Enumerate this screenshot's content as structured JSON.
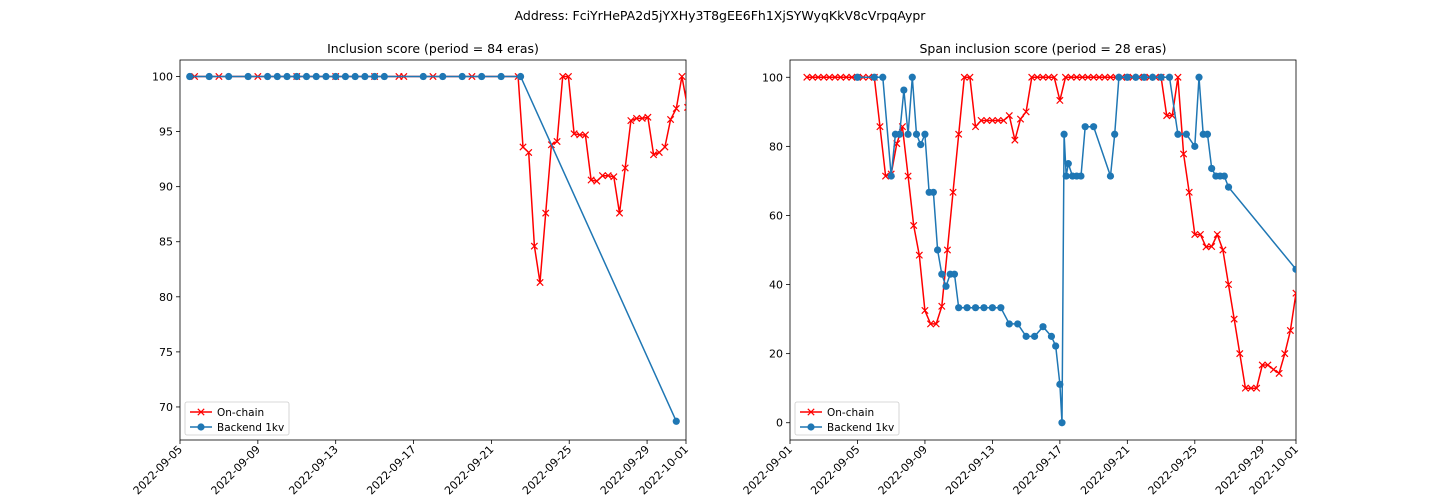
{
  "figure": {
    "suptitle": "Address: FciYrHePA2d5jYXHy3T8gEE6Fh1XjSYWyqKkV8cVrpqAypr"
  },
  "chart_data": [
    {
      "type": "line",
      "title": "Inclusion score (period = 84 eras)",
      "xlabel": "",
      "ylabel": "",
      "x_axis": "date",
      "xlim": [
        "2022-09-05",
        "2022-10-01"
      ],
      "ylim": [
        67,
        101.5
      ],
      "x_ticks": [
        "2022-09-05",
        "2022-09-09",
        "2022-09-13",
        "2022-09-17",
        "2022-09-21",
        "2022-09-25",
        "2022-09-29",
        "2022-10-01"
      ],
      "y_ticks": [
        70,
        75,
        80,
        85,
        90,
        95,
        100
      ],
      "legend": {
        "position": "lower-left"
      },
      "series": [
        {
          "name": "On-chain",
          "color": "#ff0000",
          "marker": "x",
          "points": [
            [
              "2022-09-05T18:00",
              100
            ],
            [
              "2022-09-07T00:00",
              100
            ],
            [
              "2022-09-09T00:00",
              100
            ],
            [
              "2022-09-11T00:00",
              100
            ],
            [
              "2022-09-13T00:00",
              100
            ],
            [
              "2022-09-15T00:00",
              100
            ],
            [
              "2022-09-16T06:00",
              100
            ],
            [
              "2022-09-16T12:00",
              100
            ],
            [
              "2022-09-18T00:00",
              100
            ],
            [
              "2022-09-20T00:00",
              100
            ],
            [
              "2022-09-22T09:00",
              100
            ],
            [
              "2022-09-22T15:00",
              93.6
            ],
            [
              "2022-09-22T22:00",
              93.1
            ],
            [
              "2022-09-23T05:00",
              84.6
            ],
            [
              "2022-09-23T12:00",
              81.3
            ],
            [
              "2022-09-23T19:00",
              87.6
            ],
            [
              "2022-09-24T02:00",
              93.8
            ],
            [
              "2022-09-24T09:00",
              94.1
            ],
            [
              "2022-09-24T16:00",
              100
            ],
            [
              "2022-09-24T23:00",
              100
            ],
            [
              "2022-09-25T06:00",
              94.8
            ],
            [
              "2022-09-25T13:00",
              94.7
            ],
            [
              "2022-09-25T20:00",
              94.7
            ],
            [
              "2022-09-26T03:00",
              90.6
            ],
            [
              "2022-09-26T10:00",
              90.5
            ],
            [
              "2022-09-26T17:00",
              91.0
            ],
            [
              "2022-09-27T00:00",
              91.0
            ],
            [
              "2022-09-27T07:00",
              90.9
            ],
            [
              "2022-09-27T14:00",
              87.6
            ],
            [
              "2022-09-27T21:00",
              91.7
            ],
            [
              "2022-09-28T04:00",
              96.0
            ],
            [
              "2022-09-28T11:00",
              96.2
            ],
            [
              "2022-09-28T18:00",
              96.2
            ],
            [
              "2022-09-29T01:00",
              96.3
            ],
            [
              "2022-09-29T08:00",
              92.9
            ],
            [
              "2022-09-29T15:00",
              93.1
            ],
            [
              "2022-09-29T22:00",
              93.6
            ],
            [
              "2022-09-30T05:00",
              96.1
            ],
            [
              "2022-09-30T12:00",
              97.1
            ],
            [
              "2022-09-30T19:00",
              100
            ],
            [
              "2022-10-01T02:00",
              97.2
            ],
            [
              "2022-10-01T09:00",
              97.2
            ],
            [
              "2022-10-01T16:00",
              97.2
            ]
          ]
        },
        {
          "name": "Backend 1kv",
          "color": "#1f77b4",
          "marker": "o",
          "points": [
            [
              "2022-09-05T12:00",
              100
            ],
            [
              "2022-09-06T12:00",
              100
            ],
            [
              "2022-09-07T12:00",
              100
            ],
            [
              "2022-09-08T12:00",
              100
            ],
            [
              "2022-09-09T12:00",
              100
            ],
            [
              "2022-09-10T00:00",
              100
            ],
            [
              "2022-09-10T12:00",
              100
            ],
            [
              "2022-09-11T00:00",
              100
            ],
            [
              "2022-09-11T12:00",
              100
            ],
            [
              "2022-09-12T00:00",
              100
            ],
            [
              "2022-09-12T12:00",
              100
            ],
            [
              "2022-09-13T00:00",
              100
            ],
            [
              "2022-09-13T12:00",
              100
            ],
            [
              "2022-09-14T00:00",
              100
            ],
            [
              "2022-09-14T12:00",
              100
            ],
            [
              "2022-09-15T00:00",
              100
            ],
            [
              "2022-09-15T12:00",
              100
            ],
            [
              "2022-09-17T12:00",
              100
            ],
            [
              "2022-09-18T12:00",
              100
            ],
            [
              "2022-09-19T12:00",
              100
            ],
            [
              "2022-09-20T12:00",
              100
            ],
            [
              "2022-09-21T12:00",
              100
            ],
            [
              "2022-09-22T12:00",
              100
            ],
            [
              "2022-09-30T12:00",
              68.7
            ]
          ]
        }
      ]
    },
    {
      "type": "line",
      "title": "Span inclusion score (period = 28 eras)",
      "xlabel": "",
      "ylabel": "",
      "x_axis": "date",
      "xlim": [
        "2022-09-01",
        "2022-10-01"
      ],
      "ylim": [
        -5,
        105
      ],
      "x_ticks": [
        "2022-09-01",
        "2022-09-05",
        "2022-09-09",
        "2022-09-13",
        "2022-09-17",
        "2022-09-21",
        "2022-09-25",
        "2022-09-29",
        "2022-10-01"
      ],
      "y_ticks": [
        0,
        20,
        40,
        60,
        80,
        100
      ],
      "legend": {
        "position": "lower-left"
      },
      "series": [
        {
          "name": "On-chain",
          "color": "#ff0000",
          "marker": "x",
          "points": [
            [
              "2022-09-02T00:00",
              100
            ],
            [
              "2022-09-02T08:00",
              100
            ],
            [
              "2022-09-02T16:00",
              100
            ],
            [
              "2022-09-03T00:00",
              100
            ],
            [
              "2022-09-03T08:00",
              100
            ],
            [
              "2022-09-03T16:00",
              100
            ],
            [
              "2022-09-04T00:00",
              100
            ],
            [
              "2022-09-04T08:00",
              100
            ],
            [
              "2022-09-04T16:00",
              100
            ],
            [
              "2022-09-05T00:00",
              100
            ],
            [
              "2022-09-05T08:00",
              100
            ],
            [
              "2022-09-05T16:00",
              100
            ],
            [
              "2022-09-06T00:00",
              100
            ],
            [
              "2022-09-06T08:00",
              85.7
            ],
            [
              "2022-09-06T16:00",
              71.4
            ],
            [
              "2022-09-07T00:00",
              72.0
            ],
            [
              "2022-09-07T08:00",
              80.8
            ],
            [
              "2022-09-07T16:00",
              85.7
            ],
            [
              "2022-09-08T00:00",
              71.4
            ],
            [
              "2022-09-08T08:00",
              57.1
            ],
            [
              "2022-09-08T16:00",
              48.5
            ],
            [
              "2022-09-09T00:00",
              32.5
            ],
            [
              "2022-09-09T08:00",
              28.6
            ],
            [
              "2022-09-09T16:00",
              28.6
            ],
            [
              "2022-09-10T00:00",
              33.7
            ],
            [
              "2022-09-10T08:00",
              50.0
            ],
            [
              "2022-09-10T16:00",
              66.7
            ],
            [
              "2022-09-11T00:00",
              83.5
            ],
            [
              "2022-09-11T08:00",
              100
            ],
            [
              "2022-09-11T16:00",
              100
            ],
            [
              "2022-09-12T00:00",
              85.7
            ],
            [
              "2022-09-12T08:00",
              87.5
            ],
            [
              "2022-09-12T16:00",
              87.5
            ],
            [
              "2022-09-13T00:00",
              87.5
            ],
            [
              "2022-09-13T08:00",
              87.5
            ],
            [
              "2022-09-13T16:00",
              87.5
            ],
            [
              "2022-09-14T00:00",
              88.9
            ],
            [
              "2022-09-14T08:00",
              81.8
            ],
            [
              "2022-09-14T16:00",
              87.9
            ],
            [
              "2022-09-15T00:00",
              90.0
            ],
            [
              "2022-09-15T08:00",
              100
            ],
            [
              "2022-09-15T16:00",
              100
            ],
            [
              "2022-09-16T00:00",
              100
            ],
            [
              "2022-09-16T08:00",
              100
            ],
            [
              "2022-09-16T16:00",
              100
            ],
            [
              "2022-09-17T00:00",
              93.3
            ],
            [
              "2022-09-17T08:00",
              100
            ],
            [
              "2022-09-17T16:00",
              100
            ],
            [
              "2022-09-18T00:00",
              100
            ],
            [
              "2022-09-18T08:00",
              100
            ],
            [
              "2022-09-18T16:00",
              100
            ],
            [
              "2022-09-19T00:00",
              100
            ],
            [
              "2022-09-19T08:00",
              100
            ],
            [
              "2022-09-19T16:00",
              100
            ],
            [
              "2022-09-20T00:00",
              100
            ],
            [
              "2022-09-20T08:00",
              100
            ],
            [
              "2022-09-20T16:00",
              100
            ],
            [
              "2022-09-21T00:00",
              100
            ],
            [
              "2022-09-21T08:00",
              100
            ],
            [
              "2022-09-21T16:00",
              100
            ],
            [
              "2022-09-22T00:00",
              100
            ],
            [
              "2022-09-22T08:00",
              100
            ],
            [
              "2022-09-22T16:00",
              100
            ],
            [
              "2022-09-23T00:00",
              100
            ],
            [
              "2022-09-23T08:00",
              88.9
            ],
            [
              "2022-09-23T16:00",
              88.9
            ],
            [
              "2022-09-24T00:00",
              100
            ],
            [
              "2022-09-24T08:00",
              77.8
            ],
            [
              "2022-09-24T16:00",
              66.7
            ],
            [
              "2022-09-25T00:00",
              54.5
            ],
            [
              "2022-09-25T08:00",
              54.5
            ],
            [
              "2022-09-25T16:00",
              50.9
            ],
            [
              "2022-09-26T00:00",
              51.0
            ],
            [
              "2022-09-26T08:00",
              54.5
            ],
            [
              "2022-09-26T16:00",
              50.0
            ],
            [
              "2022-09-27T00:00",
              40.0
            ],
            [
              "2022-09-27T08:00",
              30.0
            ],
            [
              "2022-09-27T16:00",
              20.0
            ],
            [
              "2022-09-28T00:00",
              10.0
            ],
            [
              "2022-09-28T08:00",
              10.0
            ],
            [
              "2022-09-28T16:00",
              10.0
            ],
            [
              "2022-09-29T00:00",
              16.7
            ],
            [
              "2022-09-29T08:00",
              16.7
            ],
            [
              "2022-09-29T16:00",
              15.4
            ],
            [
              "2022-09-30T00:00",
              14.3
            ],
            [
              "2022-09-30T08:00",
              20.0
            ],
            [
              "2022-09-30T16:00",
              26.7
            ],
            [
              "2022-10-01T00:00",
              37.5
            ]
          ]
        },
        {
          "name": "Backend 1kv",
          "color": "#1f77b4",
          "marker": "o",
          "points": [
            [
              "2022-09-05T00:00",
              100
            ],
            [
              "2022-09-06T00:00",
              100
            ],
            [
              "2022-09-06T12:00",
              100
            ],
            [
              "2022-09-07T00:00",
              71.4
            ],
            [
              "2022-09-07T06:00",
              83.5
            ],
            [
              "2022-09-07T12:00",
              83.5
            ],
            [
              "2022-09-07T18:00",
              96.3
            ],
            [
              "2022-09-08T00:00",
              83.5
            ],
            [
              "2022-09-08T06:00",
              100
            ],
            [
              "2022-09-08T12:00",
              83.5
            ],
            [
              "2022-09-08T18:00",
              80.5
            ],
            [
              "2022-09-09T00:00",
              83.5
            ],
            [
              "2022-09-09T06:00",
              66.7
            ],
            [
              "2022-09-09T12:00",
              66.7
            ],
            [
              "2022-09-09T18:00",
              50.0
            ],
            [
              "2022-09-10T00:00",
              43.0
            ],
            [
              "2022-09-10T06:00",
              39.5
            ],
            [
              "2022-09-10T12:00",
              43.0
            ],
            [
              "2022-09-10T18:00",
              43.0
            ],
            [
              "2022-09-11T00:00",
              33.3
            ],
            [
              "2022-09-11T12:00",
              33.3
            ],
            [
              "2022-09-12T00:00",
              33.3
            ],
            [
              "2022-09-12T12:00",
              33.3
            ],
            [
              "2022-09-13T00:00",
              33.3
            ],
            [
              "2022-09-13T12:00",
              33.3
            ],
            [
              "2022-09-14T00:00",
              28.6
            ],
            [
              "2022-09-14T12:00",
              28.6
            ],
            [
              "2022-09-15T00:00",
              25.0
            ],
            [
              "2022-09-15T12:00",
              25.0
            ],
            [
              "2022-09-16T00:00",
              27.8
            ],
            [
              "2022-09-16T12:00",
              25.0
            ],
            [
              "2022-09-16T18:00",
              22.2
            ],
            [
              "2022-09-17T00:00",
              11.1
            ],
            [
              "2022-09-17T03:00",
              0.0
            ],
            [
              "2022-09-17T06:00",
              83.5
            ],
            [
              "2022-09-17T09:00",
              71.4
            ],
            [
              "2022-09-17T12:00",
              75.0
            ],
            [
              "2022-09-17T18:00",
              71.4
            ],
            [
              "2022-09-18T00:00",
              71.4
            ],
            [
              "2022-09-18T06:00",
              71.4
            ],
            [
              "2022-09-18T12:00",
              85.7
            ],
            [
              "2022-09-19T00:00",
              85.7
            ],
            [
              "2022-09-20T00:00",
              71.4
            ],
            [
              "2022-09-20T06:00",
              83.5
            ],
            [
              "2022-09-20T12:00",
              100
            ],
            [
              "2022-09-21T00:00",
              100
            ],
            [
              "2022-09-21T12:00",
              100
            ],
            [
              "2022-09-22T00:00",
              100
            ],
            [
              "2022-09-22T12:00",
              100
            ],
            [
              "2022-09-23T00:00",
              100
            ],
            [
              "2022-09-23T12:00",
              100
            ],
            [
              "2022-09-24T00:00",
              83.5
            ],
            [
              "2022-09-24T12:00",
              83.5
            ],
            [
              "2022-09-25T00:00",
              80.0
            ],
            [
              "2022-09-25T06:00",
              100
            ],
            [
              "2022-09-25T12:00",
              83.5
            ],
            [
              "2022-09-25T18:00",
              83.5
            ],
            [
              "2022-09-26T00:00",
              73.6
            ],
            [
              "2022-09-26T06:00",
              71.4
            ],
            [
              "2022-09-26T12:00",
              71.4
            ],
            [
              "2022-09-26T18:00",
              71.4
            ],
            [
              "2022-09-27T00:00",
              68.2
            ],
            [
              "2022-10-01T00:00",
              44.4
            ]
          ]
        }
      ]
    }
  ]
}
